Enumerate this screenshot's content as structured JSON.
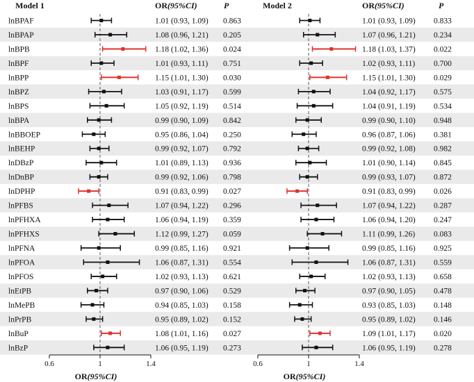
{
  "chart_data": {
    "type": "forest",
    "colors": {
      "sig": "#e0322c",
      "ns": "#111111",
      "band": "#eaeaea",
      "refline": "#555555"
    },
    "columns": {
      "or": "OR",
      "ci": "(95%CI)",
      "p": "P"
    },
    "x_ref": 1,
    "rows": [
      "lnBPAF",
      "lnBPAP",
      "lnBPB",
      "lnBPF",
      "lnBPP",
      "lnBPZ",
      "lnBPS",
      "lnBPA",
      "lnBBOEP",
      "lnBEHP",
      "lnDBzP",
      "lnDnBP",
      "lnDPHP",
      "lnPFBS",
      "lnPFHXA",
      "lnPFHXS",
      "lnPFNA",
      "lnPFOA",
      "lnPFOS",
      "lnEtPB",
      "lnMePB",
      "lnPrPB",
      "lnBuP",
      "lnBzP"
    ],
    "models": [
      {
        "title": "Model 1",
        "xlim": [
          0.6,
          1.4
        ],
        "ticks": [
          "0.6",
          "1",
          "1.4"
        ],
        "xlabel": {
          "main": "OR",
          "ci": "(95%CI)"
        },
        "or": [
          1.01,
          1.08,
          1.18,
          1.01,
          1.15,
          1.03,
          1.05,
          0.99,
          0.95,
          0.99,
          1.01,
          0.99,
          0.91,
          1.07,
          1.06,
          1.12,
          0.99,
          1.06,
          1.02,
          0.97,
          0.94,
          0.95,
          1.08,
          1.06
        ],
        "lower": [
          0.93,
          0.96,
          1.02,
          0.93,
          1.01,
          0.91,
          0.92,
          0.9,
          0.86,
          0.92,
          0.89,
          0.92,
          0.83,
          0.94,
          0.94,
          0.99,
          0.85,
          0.87,
          0.93,
          0.9,
          0.85,
          0.89,
          1.01,
          0.95
        ],
        "upper": [
          1.09,
          1.21,
          1.36,
          1.11,
          1.3,
          1.17,
          1.19,
          1.09,
          1.04,
          1.07,
          1.13,
          1.06,
          0.99,
          1.22,
          1.19,
          1.27,
          1.16,
          1.31,
          1.13,
          1.06,
          1.03,
          1.02,
          1.16,
          1.19
        ],
        "or_text": [
          "1.01 (0.93, 1.09)",
          "1.08 (0.96, 1.21)",
          "1.18 (1.02, 1.36)",
          "1.01 (0.93, 1.11)",
          "1.15 (1.01, 1.30)",
          "1.03 (0.91, 1.17)",
          "1.05 (0.92, 1.19)",
          "0.99 (0.90, 1.09)",
          "0.95 (0.86, 1.04)",
          "0.99 (0.92, 1.07)",
          "1.01 (0.89, 1.13)",
          "0.99 (0.92, 1.06)",
          "0.91 (0.83, 0.99)",
          "1.07 (0.94, 1.22)",
          "1.06 (0.94, 1.19)",
          "1.12 (0.99, 1.27)",
          "0.99 (0.85, 1.16)",
          "1.06 (0.87, 1.31)",
          "1.02 (0.93, 1.13)",
          "0.97 (0.90, 1.06)",
          "0.94 (0.85, 1.03)",
          "0.95 (0.89, 1.02)",
          "1.08 (1.01, 1.16)",
          "1.06 (0.95, 1.19)"
        ],
        "p": [
          "0.863",
          "0.205",
          "0.024",
          "0.751",
          "0.030",
          "0.599",
          "0.514",
          "0.842",
          "0.250",
          "0.792",
          "0.936",
          "0.798",
          "0.027",
          "0.296",
          "0.359",
          "0.059",
          "0.921",
          "0.554",
          "0.621",
          "0.529",
          "0.158",
          "0.152",
          "0.027",
          "0.273"
        ]
      },
      {
        "title": "Model 2",
        "xlim": [
          0.6,
          1.4
        ],
        "ticks": [
          "0.6",
          "1",
          "1.4"
        ],
        "xlabel": {
          "main": "OR",
          "ci": "(95%CI)"
        },
        "or": [
          1.01,
          1.07,
          1.18,
          1.02,
          1.15,
          1.04,
          1.04,
          0.99,
          0.96,
          0.99,
          1.01,
          0.99,
          0.91,
          1.07,
          1.06,
          1.11,
          0.99,
          1.06,
          1.02,
          0.97,
          0.93,
          0.95,
          1.09,
          1.06
        ],
        "lower": [
          0.93,
          0.96,
          1.03,
          0.93,
          1.01,
          0.92,
          0.91,
          0.9,
          0.87,
          0.92,
          0.9,
          0.93,
          0.83,
          0.94,
          0.94,
          0.99,
          0.85,
          0.87,
          0.93,
          0.9,
          0.85,
          0.89,
          1.01,
          0.95
        ],
        "upper": [
          1.09,
          1.21,
          1.37,
          1.11,
          1.3,
          1.17,
          1.19,
          1.1,
          1.06,
          1.08,
          1.14,
          1.07,
          0.99,
          1.22,
          1.2,
          1.26,
          1.16,
          1.31,
          1.13,
          1.05,
          1.03,
          1.02,
          1.17,
          1.19
        ],
        "or_text": [
          "1.01 (0.93, 1.09)",
          "1.07 (0.96, 1.21)",
          "1.18 (1.03, 1.37)",
          "1.02 (0.93, 1.11)",
          "1.15 (1.01, 1.30)",
          "1.04 (0.92, 1.17)",
          "1.04 (0.91, 1.19)",
          "0.99 (0.90, 1.10)",
          "0.96 (0.87, 1.06)",
          "0.99 (0.92, 1.08)",
          "1.01 (0.90, 1.14)",
          "0.99 (0.93, 1.07)",
          "0.91 (0.83, 0.99)",
          "1.07 (0.94, 1.22)",
          "1.06 (0.94, 1.20)",
          "1.11 (0.99, 1.26)",
          "0.99 (0.85, 1.16)",
          "1.06 (0.87, 1.31)",
          "1.02 (0.93, 1.13)",
          "0.97 (0.90, 1.05)",
          "0.93 (0.85, 1.03)",
          "0.95 (0.89, 1.02)",
          "1.09 (1.01, 1.17)",
          "1.06 (0.95, 1.19)"
        ],
        "p": [
          "0.833",
          "0.234",
          "0.022",
          "0.700",
          "0.029",
          "0.575",
          "0.534",
          "0.948",
          "0.381",
          "0.982",
          "0.845",
          "0.872",
          "0.026",
          "0.287",
          "0.247",
          "0.083",
          "0.925",
          "0.559",
          "0.658",
          "0.478",
          "0.148",
          "0.146",
          "0.020",
          "0.278"
        ]
      }
    ]
  }
}
